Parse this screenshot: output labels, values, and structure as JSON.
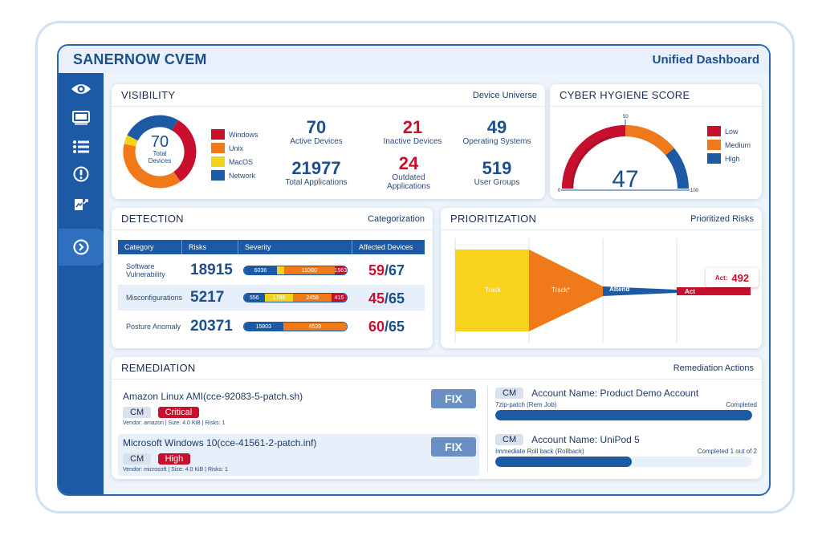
{
  "app": {
    "title": "SANERNOW CVEM",
    "dashboard": "Unified Dashboard"
  },
  "sidebar": [
    {
      "icon": "eye-icon"
    },
    {
      "icon": "monitor-icon"
    },
    {
      "icon": "list-icon"
    },
    {
      "icon": "alert-icon"
    },
    {
      "icon": "report-icon"
    },
    {
      "icon": "chevron-right-circle-icon"
    }
  ],
  "visibility": {
    "title": "VISIBILITY",
    "subtitle": "Device Universe",
    "donut": {
      "center_value": "70",
      "center_label_1": "Total",
      "center_label_2": "Devices",
      "segments": [
        {
          "name": "Windows",
          "color": "#c8102e",
          "share": 0.32
        },
        {
          "name": "Unix",
          "color": "#f07a1a",
          "share": 0.38
        },
        {
          "name": "MacOS",
          "color": "#f2d31b",
          "share": 0.04
        },
        {
          "name": "Network",
          "color": "#1c5aa6",
          "share": 0.26
        }
      ]
    },
    "stats": [
      {
        "value": "70",
        "label": "Active Devices",
        "color": "blue"
      },
      {
        "value": "21",
        "label": "Inactive Devices",
        "color": "red"
      },
      {
        "value": "49",
        "label": "Operating Systems",
        "color": "blue"
      },
      {
        "value": "21977",
        "label": "Total Applications",
        "color": "blue"
      },
      {
        "value": "24",
        "label": "Outdated Applications",
        "color": "red"
      },
      {
        "value": "519",
        "label": "User Groups",
        "color": "blue"
      }
    ]
  },
  "hygiene": {
    "title": "CYBER HYGIENE SCORE",
    "score": "47",
    "score_value": 47,
    "min_label": "0",
    "mid_label": "50",
    "max_label": "100",
    "legend": [
      {
        "name": "Low",
        "color": "#c8102e"
      },
      {
        "name": "Medium",
        "color": "#f07a1a"
      },
      {
        "name": "High",
        "color": "#1c5aa6"
      }
    ]
  },
  "detection": {
    "title": "DETECTION",
    "subtitle": "Categorization",
    "columns": [
      "Category",
      "Risks",
      "Severity",
      "Affected Devices"
    ],
    "rows": [
      {
        "category": "Software Vulnerability",
        "risks": "18915",
        "severity": [
          {
            "value": "6036",
            "color": "#1c5aa6",
            "share": 0.32
          },
          {
            "value": "",
            "color": "#f2d31b",
            "share": 0.07
          },
          {
            "value": "11080",
            "color": "#f07a1a",
            "share": 0.49
          },
          {
            "value": "1563",
            "color": "#c8102e",
            "share": 0.12
          }
        ],
        "affected": "59",
        "total": "/67"
      },
      {
        "category": "Misconfigurations",
        "risks": "5217",
        "severity": [
          {
            "value": "556",
            "color": "#1c5aa6",
            "share": 0.2
          },
          {
            "value": "1788",
            "color": "#f2d31b",
            "share": 0.28
          },
          {
            "value": "2458",
            "color": "#f07a1a",
            "share": 0.37
          },
          {
            "value": "415",
            "color": "#c8102e",
            "share": 0.15
          }
        ],
        "affected": "45",
        "total": "/65"
      },
      {
        "category": "Posture Anomaly",
        "risks": "20371",
        "severity": [
          {
            "value": "15803",
            "color": "#1c5aa6",
            "share": 0.38
          },
          {
            "value": "4539",
            "color": "#f07a1a",
            "share": 0.62
          }
        ],
        "affected": "60",
        "total": "/65"
      }
    ]
  },
  "prioritization": {
    "title": "PRIORITIZATION",
    "subtitle": "Prioritized Risks",
    "stages": [
      "Track",
      "Track*",
      "Attend",
      "Act"
    ],
    "act_label": "Act:",
    "act_value": "492"
  },
  "remediation": {
    "title": "REMEDIATION",
    "subtitle": "Remediation Actions",
    "items": [
      {
        "name": "Amazon Linux AMI(cce-92083-5-patch.sh)",
        "tag": "CM",
        "severity": "Critical",
        "meta": "Vendor: amazon | Size: 4.0 KiB | Risks: 1",
        "action": "FIX"
      },
      {
        "name": "Microsoft Windows 10(cce-41561-2-patch.inf)",
        "tag": "CM",
        "severity": "High",
        "meta": "Vendor: microsoft | Size: 4.0 KiB | Risks: 1",
        "action": "FIX"
      }
    ],
    "actions": [
      {
        "tag": "CM",
        "account": "Account Name: Product Demo Account",
        "job": "7zip-patch (Rem Job)",
        "status": "Completed",
        "progress": 1.0
      },
      {
        "tag": "CM",
        "account": "Account Name: UniPod 5",
        "job": "Immediate Roll back (Rollback)",
        "status": "Completed 1 out of 2",
        "progress": 0.53
      }
    ]
  }
}
